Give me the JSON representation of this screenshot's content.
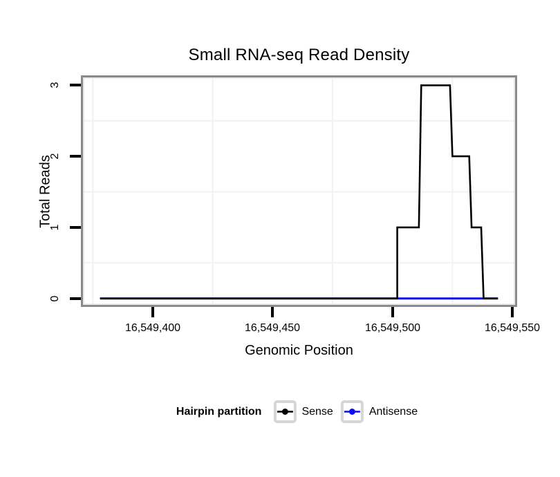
{
  "chart_data": {
    "type": "line",
    "title": "Small RNA-seq Read Density",
    "xlabel": "Genomic Position",
    "ylabel": "Total Reads",
    "xlim": [
      16549370,
      16549552
    ],
    "ylim": [
      -0.12,
      3.14
    ],
    "x_ticks": [
      {
        "value": 16549400,
        "label": "16,549,400"
      },
      {
        "value": 16549450,
        "label": "16,549,450"
      },
      {
        "value": 16549500,
        "label": "16,549,500"
      },
      {
        "value": 16549550,
        "label": "16,549,550"
      }
    ],
    "y_ticks": [
      {
        "value": 0,
        "label": "0"
      },
      {
        "value": 1,
        "label": "1"
      },
      {
        "value": 2,
        "label": "2"
      },
      {
        "value": 3,
        "label": "3"
      }
    ],
    "grid": {
      "x_minor": [
        16549375,
        16549425,
        16549475,
        16549525
      ],
      "y_minor": [
        0.5,
        1.5,
        2.5
      ],
      "major_shown": false
    },
    "series": [
      {
        "name": "Antisense",
        "color": "#0d0deb",
        "points": [
          [
            16549378,
            0
          ],
          [
            16549502,
            0
          ],
          [
            16549544,
            0
          ]
        ]
      },
      {
        "name": "Sense",
        "color": "#000000",
        "points": [
          [
            16549378,
            0
          ],
          [
            16549502,
            0
          ],
          [
            16549502,
            1
          ],
          [
            16549511,
            1
          ],
          [
            16549512,
            3
          ],
          [
            16549524,
            3
          ],
          [
            16549525,
            2
          ],
          [
            16549532,
            2
          ],
          [
            16549533,
            1
          ],
          [
            16549537,
            1
          ],
          [
            16549538,
            0
          ],
          [
            16549544,
            0
          ]
        ]
      }
    ],
    "legend_position": "bottom"
  },
  "legend": {
    "title": "Hairpin partition",
    "entries": [
      {
        "label": "Sense",
        "color": "#000000"
      },
      {
        "label": "Antisense",
        "color": "#0d0deb"
      }
    ]
  },
  "theme": {
    "background": "#ffffff",
    "grid_minor": "#f2f2f2",
    "panel_border": "#8a8a8a",
    "panel_border_inner": "#e3e3e3",
    "tick_color": "#000000",
    "legend_key_border": "#d6d6d6"
  }
}
